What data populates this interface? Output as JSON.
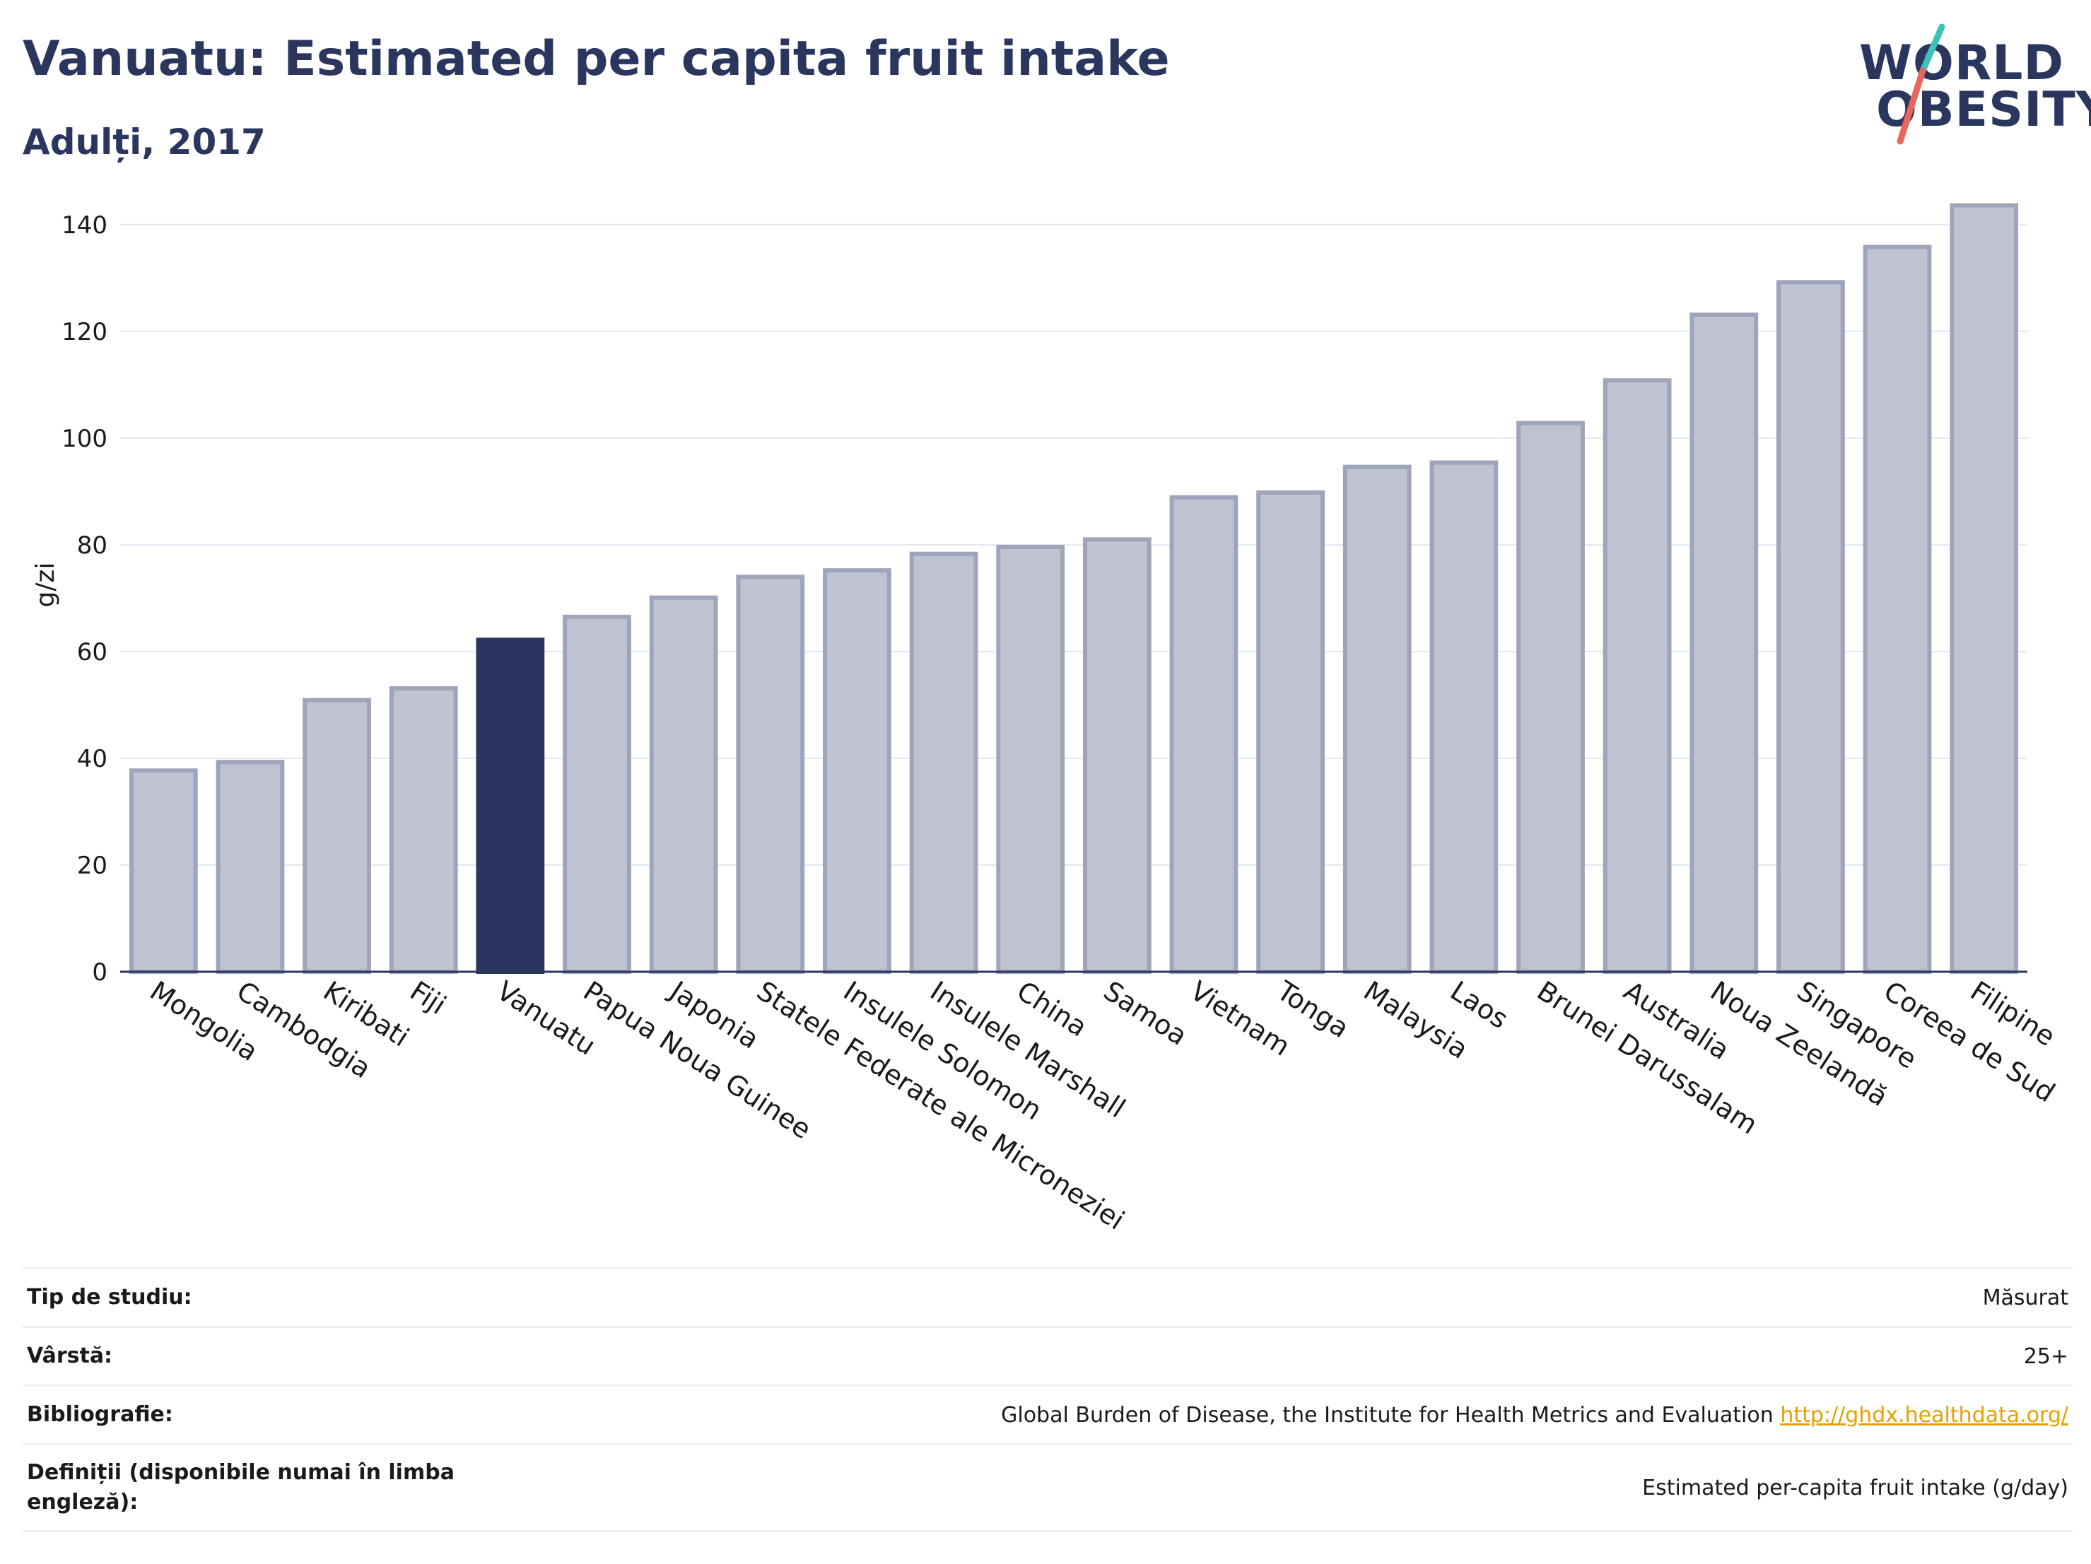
{
  "header": {
    "title": "Vanuatu: Estimated per capita fruit intake",
    "subtitle": "Adulți, 2017"
  },
  "logo": {
    "line1": "WORLD",
    "line2": "OBESITY",
    "accent_colors": [
      "#3ec1b6",
      "#e8675a"
    ]
  },
  "chart_data": {
    "type": "bar",
    "ylabel": "g/zi",
    "ylim": [
      0,
      145
    ],
    "yticks": [
      0,
      20,
      40,
      60,
      80,
      100,
      120,
      140
    ],
    "grid": true,
    "highlight": "Vanuatu",
    "colors": {
      "bar": "#bfc3d1",
      "bar_border": "#9ea4ba",
      "highlight": "#2a365e",
      "grid": "#e4e7ee",
      "axis": "#2a365e"
    },
    "categories": [
      "Mongolia",
      "Cambodgia",
      "Kiribati",
      "Fiji",
      "Vanuatu",
      "Papua Noua Guinee",
      "Japonia",
      "Statele Federate ale Microneziei",
      "Insulele Solomon",
      "Insulele Marshall",
      "China",
      "Samoa",
      "Vietnam",
      "Tonga",
      "Malaysia",
      "Laos",
      "Brunei Darussalam",
      "Australia",
      "Noua Zeelandă",
      "Singapore",
      "Coreea de Sud",
      "Filipine"
    ],
    "values": [
      37.7,
      39.3,
      50.9,
      53.1,
      62.2,
      66.5,
      70.1,
      74.0,
      75.2,
      78.3,
      79.6,
      81.0,
      88.9,
      89.8,
      94.6,
      95.4,
      102.8,
      110.8,
      123.1,
      129.2,
      135.8,
      143.6
    ]
  },
  "meta": {
    "study_type_label": "Tip de studiu:",
    "study_type_value": "Măsurat",
    "age_label": "Vârstă:",
    "age_value": "25+",
    "bibliography_label": "Bibliografie:",
    "bibliography_text": "Global Burden of Disease, the Institute for Health Metrics and Evaluation",
    "bibliography_link": "http://ghdx.healthdata.org/",
    "definitions_label": "Definiții (disponibile numai în limba engleză):",
    "definitions_value": "Estimated per-capita fruit intake (g/day)"
  }
}
